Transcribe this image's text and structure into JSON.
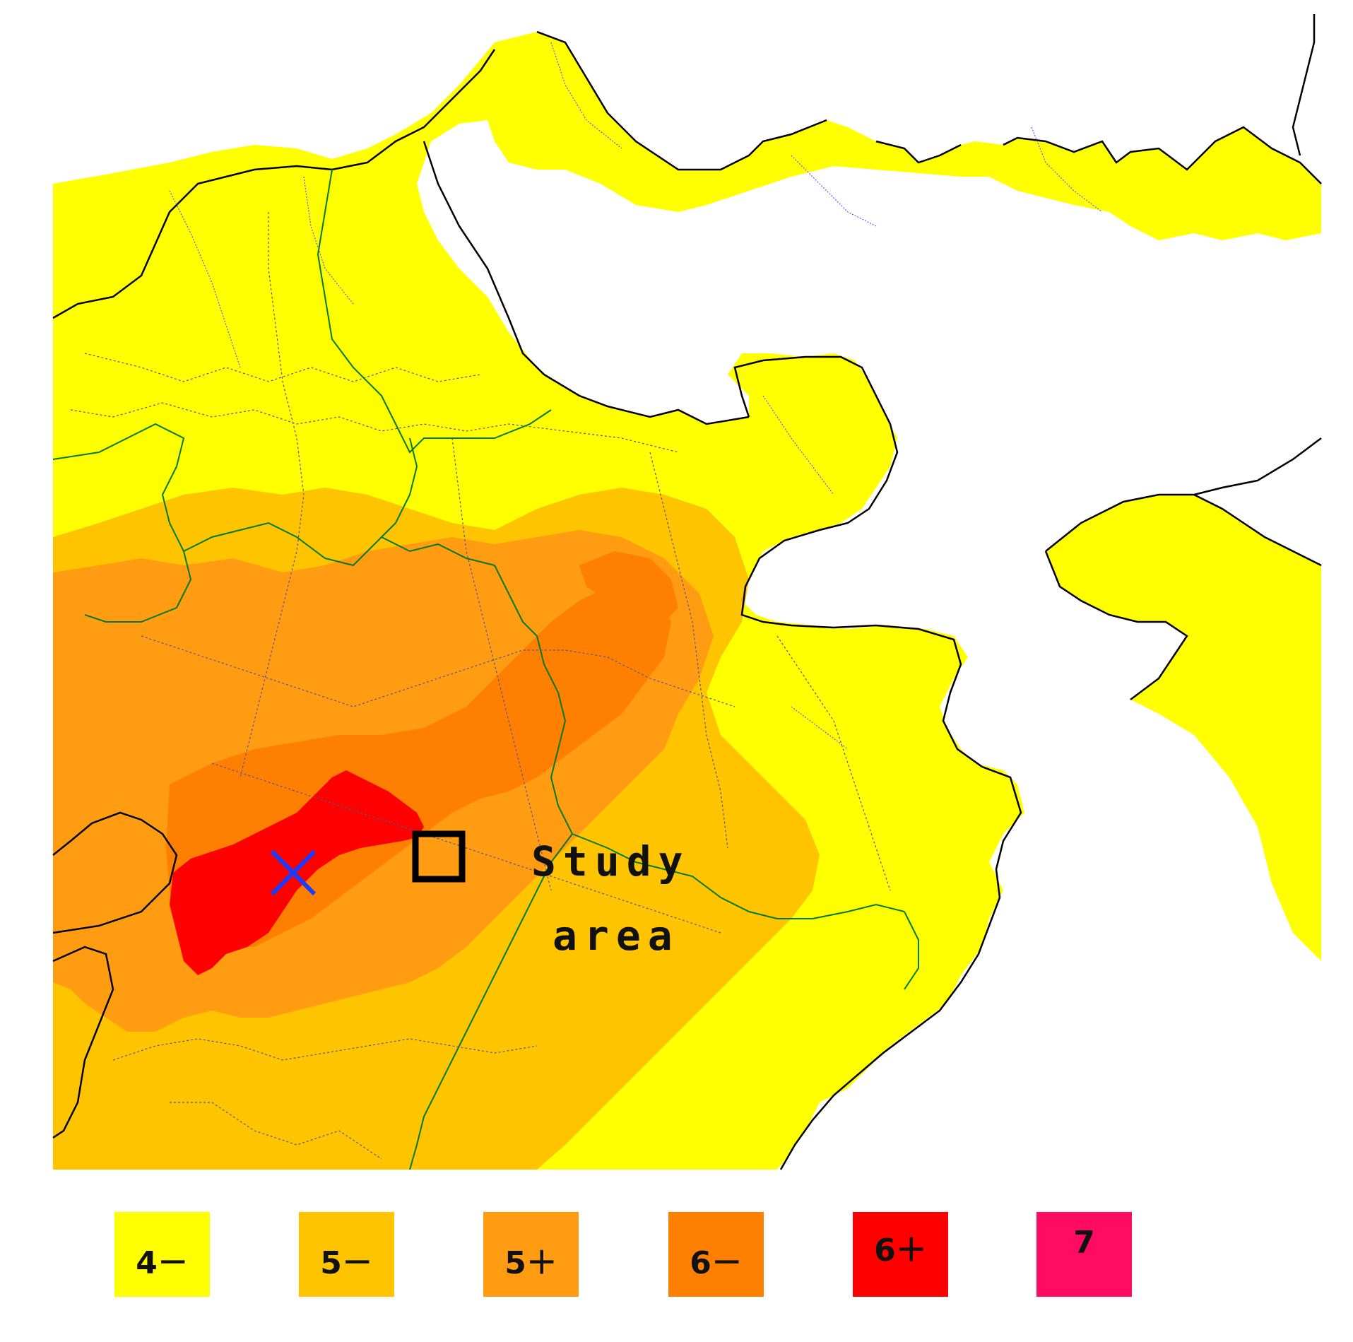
{
  "map": {
    "colors": {
      "land_default": "#ffff00",
      "coastline": "#000000",
      "boundary_pref": "#007a1a",
      "boundary_city": "#555599",
      "river": "#5a5aff",
      "epicenter_marker": "#1a3cff",
      "study_area_box": "#000000"
    },
    "markers": {
      "epicenter": {
        "icon": "x-cross-icon"
      },
      "study_area": {
        "icon": "square-outline-icon",
        "label_line1": "Study",
        "label_line2": "area"
      }
    }
  },
  "legend": {
    "items": [
      {
        "label": "4－",
        "color": "#ffff00"
      },
      {
        "label": "5－",
        "color": "#ffc400"
      },
      {
        "label": "5＋",
        "color": "#ff9c12"
      },
      {
        "label": "6－",
        "color": "#ff7f00"
      },
      {
        "label": "6＋",
        "color": "#ff0000"
      },
      {
        "label": "7",
        "color": "#ff0b62"
      }
    ]
  }
}
